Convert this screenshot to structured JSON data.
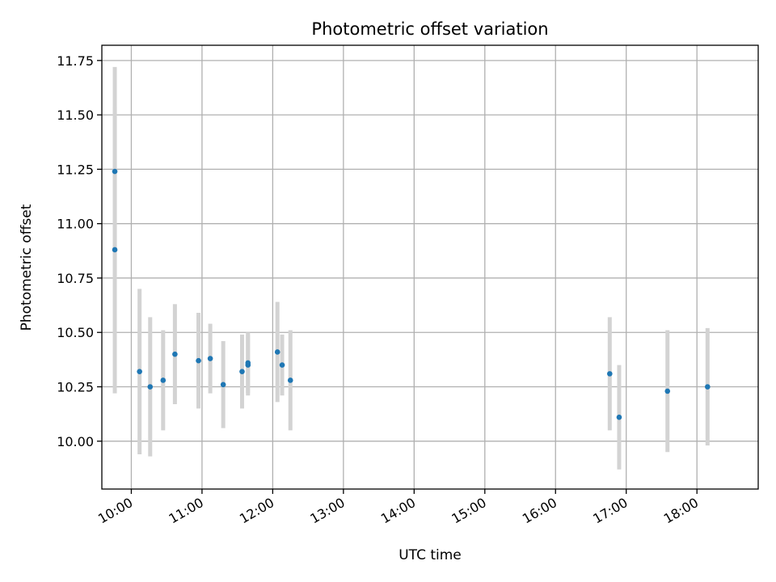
{
  "chart_data": {
    "type": "scatter",
    "title": "Photometric offset variation",
    "xlabel": "UTC time",
    "ylabel": "Photometric offset",
    "x_type": "time",
    "xlim": [
      "09:35",
      "18:52"
    ],
    "ylim": [
      9.78,
      11.82
    ],
    "grid": true,
    "x_ticks": [
      "10:00",
      "11:00",
      "12:00",
      "13:00",
      "14:00",
      "15:00",
      "16:00",
      "17:00",
      "18:00"
    ],
    "y_ticks": [
      "10.00",
      "10.25",
      "10.50",
      "10.75",
      "11.00",
      "11.25",
      "11.50",
      "11.75"
    ],
    "marker_color": "#1f77b4",
    "errorbar_color": "#d3d3d3",
    "series": [
      {
        "points": [
          {
            "x": "09:46",
            "y": 11.24,
            "yerr": 0.48
          },
          {
            "x": "09:46",
            "y": 10.88,
            "yerr": 0.66
          },
          {
            "x": "10:07",
            "y": 10.32,
            "yerr": 0.38
          },
          {
            "x": "10:16",
            "y": 10.25,
            "yerr": 0.32
          },
          {
            "x": "10:27",
            "y": 10.28,
            "yerr": 0.23
          },
          {
            "x": "10:37",
            "y": 10.4,
            "yerr": 0.23
          },
          {
            "x": "10:57",
            "y": 10.37,
            "yerr": 0.22
          },
          {
            "x": "11:07",
            "y": 10.38,
            "yerr": 0.16
          },
          {
            "x": "11:18",
            "y": 10.26,
            "yerr": 0.2
          },
          {
            "x": "11:34",
            "y": 10.32,
            "yerr": 0.17
          },
          {
            "x": "11:39",
            "y": 10.35,
            "yerr": 0.14
          },
          {
            "x": "11:39",
            "y": 10.36,
            "yerr": 0.14
          },
          {
            "x": "12:04",
            "y": 10.41,
            "yerr": 0.23
          },
          {
            "x": "12:08",
            "y": 10.35,
            "yerr": 0.14
          },
          {
            "x": "12:15",
            "y": 10.28,
            "yerr": 0.23
          },
          {
            "x": "16:46",
            "y": 10.31,
            "yerr": 0.26
          },
          {
            "x": "16:54",
            "y": 10.11,
            "yerr": 0.24
          },
          {
            "x": "17:35",
            "y": 10.23,
            "yerr": 0.28
          },
          {
            "x": "18:09",
            "y": 10.25,
            "yerr": 0.27
          }
        ]
      }
    ]
  }
}
